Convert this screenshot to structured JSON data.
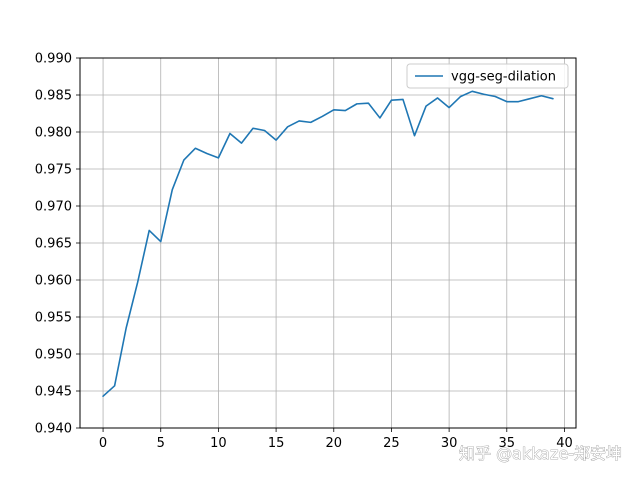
{
  "chart_data": {
    "type": "line",
    "title": "",
    "xlabel": "",
    "ylabel": "",
    "xlim": [
      -2,
      41
    ],
    "ylim": [
      0.94,
      0.99
    ],
    "x_ticks": [
      0,
      5,
      10,
      15,
      20,
      25,
      30,
      35,
      40
    ],
    "x_tick_labels": [
      "0",
      "5",
      "10",
      "15",
      "20",
      "25",
      "30",
      "35",
      "40"
    ],
    "y_ticks": [
      0.94,
      0.945,
      0.95,
      0.955,
      0.96,
      0.965,
      0.97,
      0.975,
      0.98,
      0.985,
      0.99
    ],
    "y_tick_labels": [
      "0.940",
      "0.945",
      "0.950",
      "0.955",
      "0.960",
      "0.965",
      "0.970",
      "0.975",
      "0.980",
      "0.985",
      "0.990"
    ],
    "grid": true,
    "legend": "top-right",
    "series": [
      {
        "name": "vgg-seg-dilation",
        "color": "#1f77b4",
        "x": [
          0,
          1,
          2,
          3,
          4,
          5,
          6,
          7,
          8,
          9,
          10,
          11,
          12,
          13,
          14,
          15,
          16,
          17,
          18,
          19,
          20,
          21,
          22,
          23,
          24,
          25,
          26,
          27,
          28,
          29,
          30,
          31,
          32,
          33,
          34,
          35,
          36,
          37,
          38,
          39
        ],
        "values": [
          0.9443,
          0.9457,
          0.9535,
          0.9597,
          0.9667,
          0.9652,
          0.9722,
          0.9762,
          0.9778,
          0.9771,
          0.9765,
          0.9798,
          0.9785,
          0.9805,
          0.9802,
          0.9789,
          0.9807,
          0.9815,
          0.9813,
          0.9821,
          0.983,
          0.9829,
          0.9838,
          0.9839,
          0.9819,
          0.9843,
          0.9844,
          0.9795,
          0.9835,
          0.9846,
          0.9833,
          0.9848,
          0.9855,
          0.9851,
          0.9848,
          0.9841,
          0.9841,
          0.9845,
          0.9849,
          0.9845
        ]
      }
    ]
  },
  "watermark": {
    "text": "知乎 @akkaze-郑安坤"
  }
}
